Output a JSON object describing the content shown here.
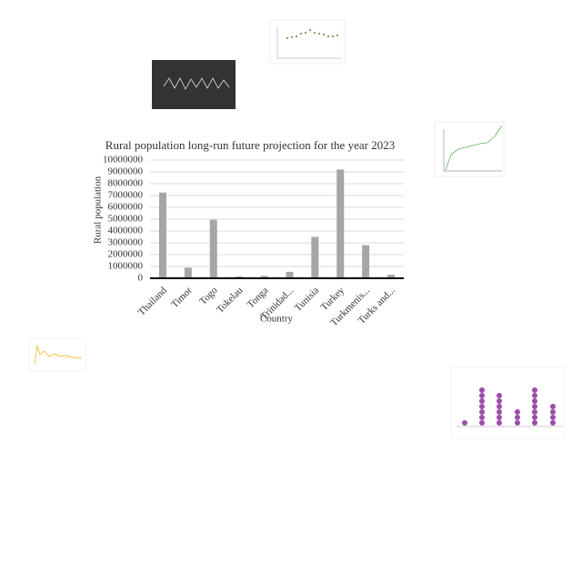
{
  "chart_data": {
    "type": "bar",
    "title": "Rural population long-run future projection for the year 2023",
    "x_label": "Country",
    "y_label": "Rural population",
    "categories": [
      "Thailand",
      "Timor",
      "Togo",
      "Tokelau",
      "Tonga",
      "Trinidad...",
      "Tunisia",
      "Turkey",
      "Turkmenis...",
      "Turks and..."
    ],
    "values": [
      7250000,
      900000,
      4950000,
      150000,
      200000,
      550000,
      3500000,
      9200000,
      2800000,
      300000
    ],
    "color": "#a6a6a6",
    "ylim": [
      0,
      10000000
    ],
    "yticks": [
      0,
      1000000,
      2000000,
      3000000,
      4000000,
      5000000,
      6000000,
      7000000,
      8000000,
      9000000,
      10000000
    ],
    "grid": true
  }
}
